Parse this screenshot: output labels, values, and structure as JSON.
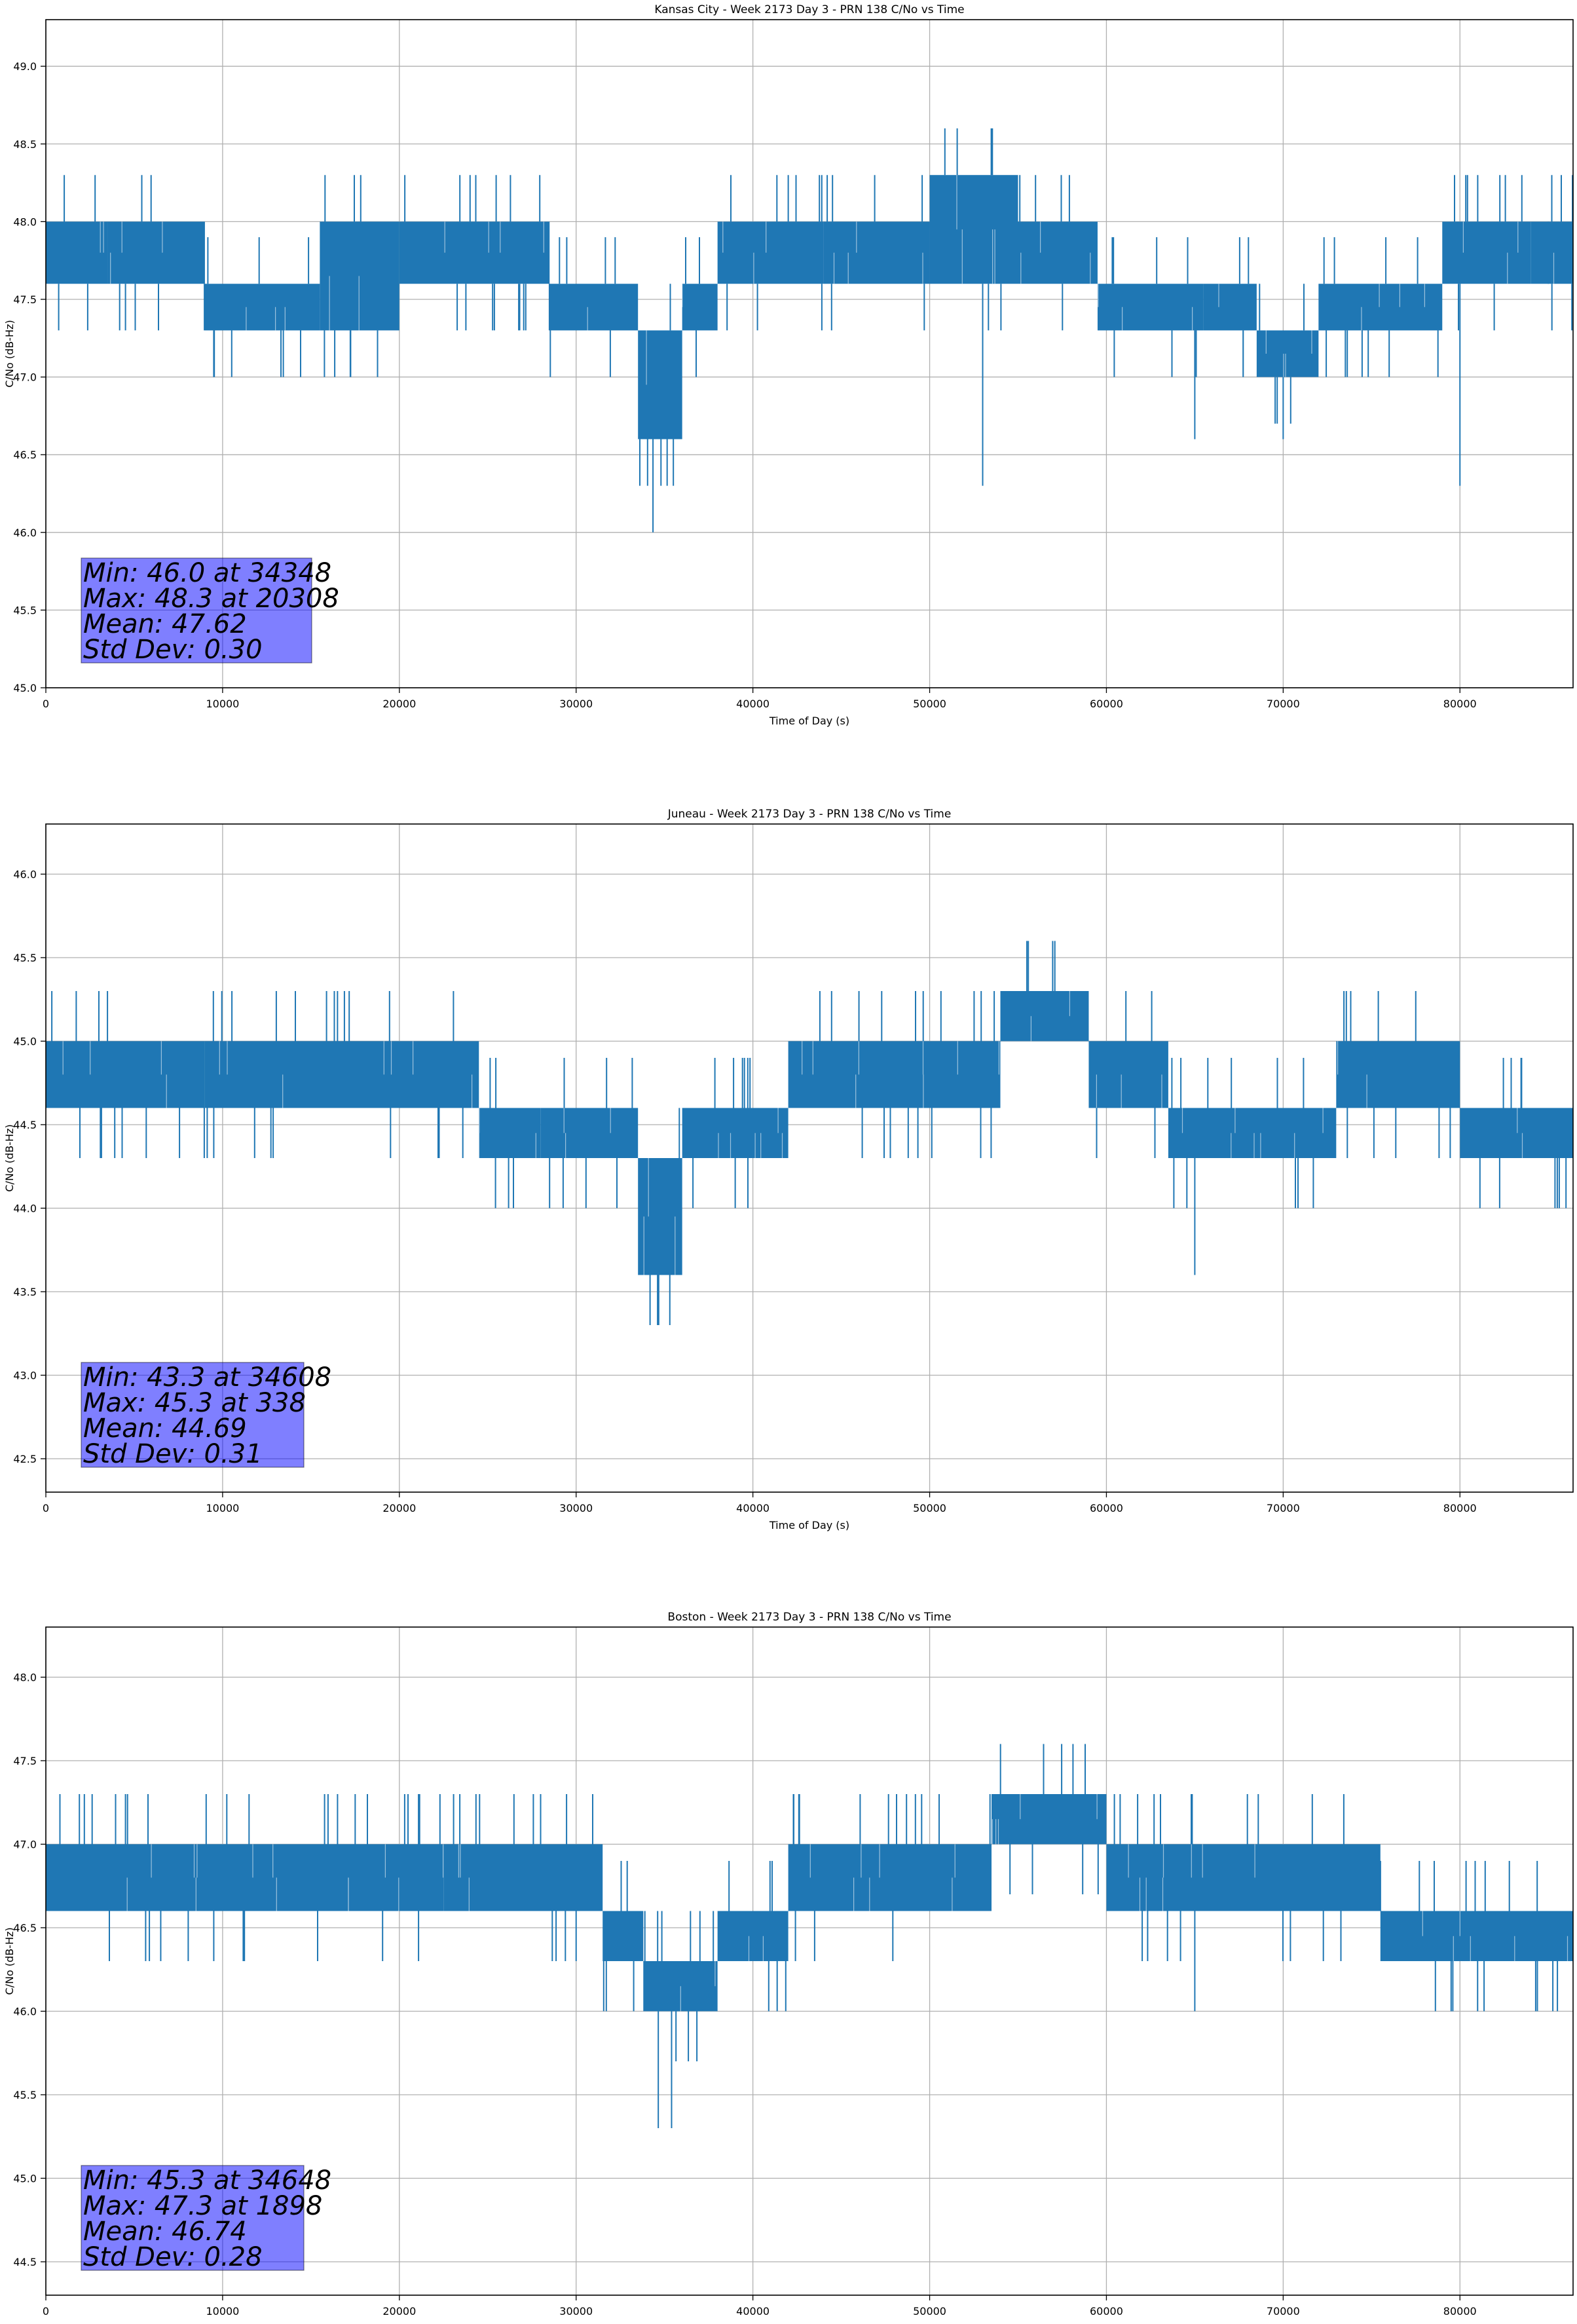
{
  "colors": {
    "series": "#1f77b4",
    "grid": "#b0b0b0",
    "stats_box_fill": "#0000ff",
    "text": "#000000"
  },
  "chart_data": [
    {
      "type": "line",
      "title": "Kansas City - Week 2173 Day 3 - PRN 138 C/No vs Time",
      "xlabel": "Time of Day (s)",
      "ylabel": "C/No (dB-Hz)",
      "xlim": [
        0,
        86400
      ],
      "ylim": [
        45.0,
        49.3
      ],
      "xticks": [
        0,
        10000,
        20000,
        30000,
        40000,
        50000,
        60000,
        70000,
        80000
      ],
      "yticks": [
        45.0,
        45.5,
        46.0,
        46.5,
        47.0,
        47.5,
        48.0,
        48.5,
        49.0
      ],
      "grid": true,
      "band_segments": [
        {
          "x": [
            0,
            3500
          ],
          "low": 47.6,
          "high": 48.0
        },
        {
          "x": [
            3500,
            9000
          ],
          "low": 47.6,
          "high": 48.0
        },
        {
          "x": [
            9000,
            15500
          ],
          "low": 47.3,
          "high": 47.6
        },
        {
          "x": [
            15500,
            20000
          ],
          "low": 47.3,
          "high": 48.0
        },
        {
          "x": [
            20000,
            28500
          ],
          "low": 47.6,
          "high": 48.0
        },
        {
          "x": [
            28500,
            33500
          ],
          "low": 47.3,
          "high": 47.6
        },
        {
          "x": [
            33500,
            36000
          ],
          "low": 46.6,
          "high": 47.3
        },
        {
          "x": [
            36000,
            38000
          ],
          "low": 47.3,
          "high": 47.6
        },
        {
          "x": [
            38000,
            44000
          ],
          "low": 47.6,
          "high": 48.0
        },
        {
          "x": [
            44000,
            50000
          ],
          "low": 47.6,
          "high": 48.0
        },
        {
          "x": [
            50000,
            55000
          ],
          "low": 47.6,
          "high": 48.3
        },
        {
          "x": [
            55000,
            59500
          ],
          "low": 47.6,
          "high": 48.0
        },
        {
          "x": [
            59500,
            65500
          ],
          "low": 47.3,
          "high": 47.6
        },
        {
          "x": [
            65500,
            68500
          ],
          "low": 47.3,
          "high": 47.6
        },
        {
          "x": [
            68500,
            72000
          ],
          "low": 47.0,
          "high": 47.3
        },
        {
          "x": [
            72000,
            79000
          ],
          "low": 47.3,
          "high": 47.6
        },
        {
          "x": [
            79000,
            84000
          ],
          "low": 47.6,
          "high": 48.0
        },
        {
          "x": [
            84000,
            86400
          ],
          "low": 47.6,
          "high": 48.0
        }
      ],
      "spikes": [
        {
          "x": 9500,
          "y": 47.0
        },
        {
          "x": 20308,
          "y": 48.3
        },
        {
          "x": 24000,
          "y": 48.3
        },
        {
          "x": 34348,
          "y": 46.0
        },
        {
          "x": 34800,
          "y": 46.3
        },
        {
          "x": 35500,
          "y": 46.3
        },
        {
          "x": 42000,
          "y": 48.3
        },
        {
          "x": 53000,
          "y": 46.3
        },
        {
          "x": 65000,
          "y": 46.6
        },
        {
          "x": 70000,
          "y": 46.6
        },
        {
          "x": 80000,
          "y": 46.3
        },
        {
          "x": 85000,
          "y": 48.0
        }
      ],
      "stats": [
        "Min: 46.0 at 34348",
        "Max: 48.3 at 20308",
        "Mean: 47.62",
        "Std Dev: 0.30"
      ]
    },
    {
      "type": "line",
      "title": "Juneau - Week 2173 Day 3 - PRN 138 C/No vs Time",
      "xlabel": "Time of Day (s)",
      "ylabel": "C/No (dB-Hz)",
      "xlim": [
        0,
        86400
      ],
      "ylim": [
        42.3,
        46.3
      ],
      "xticks": [
        0,
        10000,
        20000,
        30000,
        40000,
        50000,
        60000,
        70000,
        80000
      ],
      "yticks": [
        42.5,
        43.0,
        43.5,
        44.0,
        44.5,
        45.0,
        45.5,
        46.0
      ],
      "grid": true,
      "band_segments": [
        {
          "x": [
            0,
            9000
          ],
          "low": 44.6,
          "high": 45.0
        },
        {
          "x": [
            9000,
            24500
          ],
          "low": 44.6,
          "high": 45.0
        },
        {
          "x": [
            24500,
            28000
          ],
          "low": 44.3,
          "high": 44.6
        },
        {
          "x": [
            28000,
            33500
          ],
          "low": 44.3,
          "high": 44.6
        },
        {
          "x": [
            33500,
            36000
          ],
          "low": 43.6,
          "high": 44.3
        },
        {
          "x": [
            36000,
            42000
          ],
          "low": 44.3,
          "high": 44.6
        },
        {
          "x": [
            42000,
            54000
          ],
          "low": 44.6,
          "high": 45.0
        },
        {
          "x": [
            54000,
            59000
          ],
          "low": 45.0,
          "high": 45.3
        },
        {
          "x": [
            59000,
            63500
          ],
          "low": 44.6,
          "high": 45.0
        },
        {
          "x": [
            63500,
            73000
          ],
          "low": 44.3,
          "high": 44.6
        },
        {
          "x": [
            73000,
            80000
          ],
          "low": 44.6,
          "high": 45.0
        },
        {
          "x": [
            80000,
            86400
          ],
          "low": 44.3,
          "high": 44.6
        }
      ],
      "spikes": [
        {
          "x": 338,
          "y": 45.3
        },
        {
          "x": 3000,
          "y": 45.3
        },
        {
          "x": 9500,
          "y": 44.3
        },
        {
          "x": 16500,
          "y": 45.3
        },
        {
          "x": 19500,
          "y": 44.3
        },
        {
          "x": 34608,
          "y": 43.3
        },
        {
          "x": 35300,
          "y": 43.3
        },
        {
          "x": 39000,
          "y": 44.0
        },
        {
          "x": 46000,
          "y": 45.3
        },
        {
          "x": 65000,
          "y": 43.6
        },
        {
          "x": 77500,
          "y": 45.3
        },
        {
          "x": 86000,
          "y": 44.0
        }
      ],
      "stats": [
        "Min: 43.3 at 34608",
        "Max: 45.3 at 338",
        "Mean: 44.69",
        "Std Dev: 0.31"
      ]
    },
    {
      "type": "line",
      "title": "Boston - Week 2173 Day 3 - PRN 138 C/No vs Time",
      "xlabel": "Time of Day (s)",
      "ylabel": "C/No (dB-Hz)",
      "xlim": [
        0,
        86400
      ],
      "ylim": [
        44.3,
        48.3
      ],
      "xticks": [
        0,
        10000,
        20000,
        30000,
        40000,
        50000,
        60000,
        70000,
        80000
      ],
      "yticks": [
        44.5,
        45.0,
        45.5,
        46.0,
        46.5,
        47.0,
        47.5,
        48.0
      ],
      "grid": true,
      "band_segments": [
        {
          "x": [
            0,
            22500
          ],
          "low": 46.6,
          "high": 47.0
        },
        {
          "x": [
            22500,
            31500
          ],
          "low": 46.6,
          "high": 47.0
        },
        {
          "x": [
            31500,
            33800
          ],
          "low": 46.3,
          "high": 46.6
        },
        {
          "x": [
            33800,
            38000
          ],
          "low": 46.0,
          "high": 46.3
        },
        {
          "x": [
            38000,
            42000
          ],
          "low": 46.3,
          "high": 46.6
        },
        {
          "x": [
            42000,
            53500
          ],
          "low": 46.6,
          "high": 47.0
        },
        {
          "x": [
            53500,
            60000
          ],
          "low": 47.0,
          "high": 47.3
        },
        {
          "x": [
            60000,
            75500
          ],
          "low": 46.6,
          "high": 47.0
        },
        {
          "x": [
            75500,
            86400
          ],
          "low": 46.3,
          "high": 46.6
        }
      ],
      "spikes": [
        {
          "x": 1898,
          "y": 47.3
        },
        {
          "x": 6500,
          "y": 46.3
        },
        {
          "x": 9500,
          "y": 46.3
        },
        {
          "x": 17500,
          "y": 47.3
        },
        {
          "x": 30000,
          "y": 46.3
        },
        {
          "x": 34648,
          "y": 45.3
        },
        {
          "x": 35400,
          "y": 45.3
        },
        {
          "x": 65000,
          "y": 46.0
        },
        {
          "x": 81000,
          "y": 46.0
        },
        {
          "x": 86000,
          "y": 46.3
        }
      ],
      "stats": [
        "Min: 45.3 at 34648",
        "Max: 47.3 at 1898",
        "Mean: 46.74",
        "Std Dev: 0.28"
      ]
    }
  ]
}
